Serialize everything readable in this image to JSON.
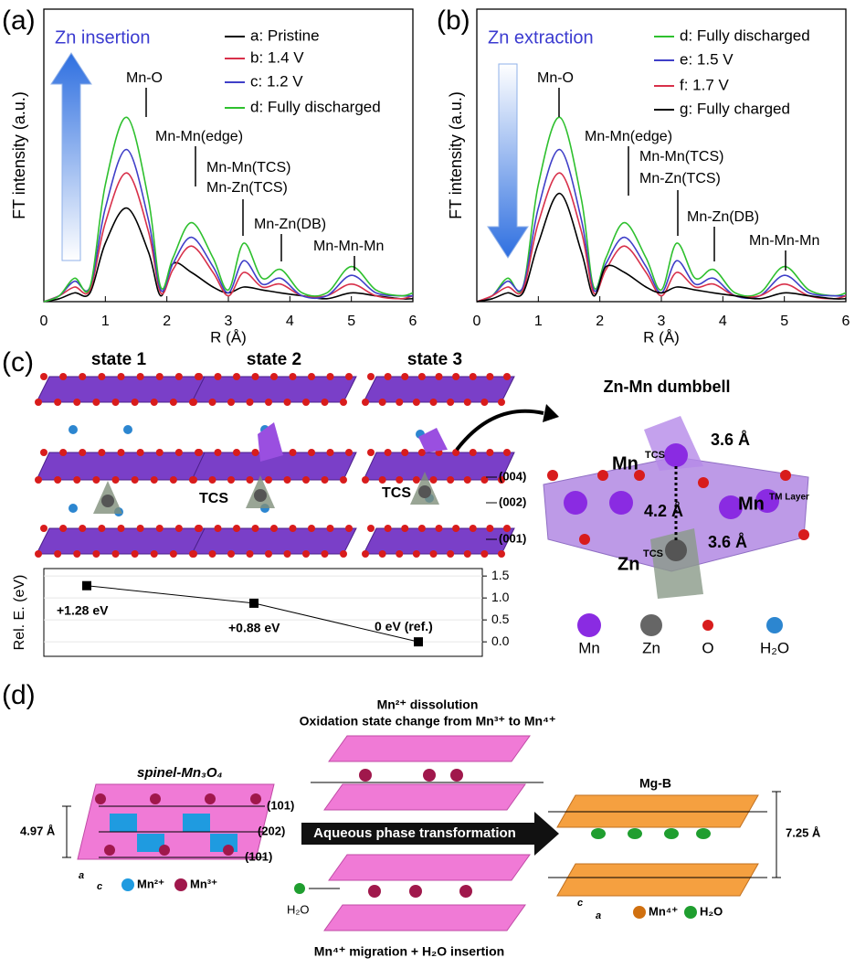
{
  "chart_data": [
    {
      "type": "line",
      "panel": "(a)",
      "title": "Zn insertion",
      "xlabel": "R (Å)",
      "ylabel": "FT intensity (a.u.)",
      "x": [
        0,
        0.25,
        0.5,
        0.75,
        1.0,
        1.35,
        1.7,
        1.9,
        2.1,
        2.4,
        2.75,
        3.0,
        3.25,
        3.55,
        3.85,
        4.2,
        4.6,
        5.0,
        5.4,
        5.8,
        6.0
      ],
      "xlim": [
        0,
        6
      ],
      "xticks": [
        0,
        1,
        2,
        3,
        4,
        5,
        6
      ],
      "ylim": [
        0,
        1
      ],
      "series": [
        {
          "name": "a: Pristine",
          "color": "#000000",
          "values": [
            0,
            0.01,
            0.03,
            0.03,
            0.2,
            0.32,
            0.17,
            0.02,
            0.13,
            0.1,
            0.05,
            0.03,
            0.05,
            0.04,
            0.03,
            0.02,
            0.01,
            0.03,
            0.02,
            0.01,
            0.01
          ]
        },
        {
          "name": "b: 1.4 V",
          "color": "#d8304a",
          "values": [
            0,
            0.02,
            0.05,
            0.04,
            0.27,
            0.44,
            0.24,
            0.03,
            0.11,
            0.19,
            0.1,
            0.02,
            0.1,
            0.05,
            0.06,
            0.02,
            0.02,
            0.06,
            0.02,
            0.01,
            0.02
          ]
        },
        {
          "name": "c: 1.2 V",
          "color": "#3f3fc8",
          "values": [
            0,
            0.02,
            0.07,
            0.05,
            0.32,
            0.52,
            0.28,
            0.04,
            0.13,
            0.22,
            0.12,
            0.03,
            0.14,
            0.06,
            0.08,
            0.02,
            0.02,
            0.09,
            0.03,
            0.02,
            0.02
          ]
        },
        {
          "name": "d: Fully discharged",
          "color": "#2ec02e",
          "values": [
            0,
            0.02,
            0.08,
            0.05,
            0.4,
            0.63,
            0.35,
            0.05,
            0.15,
            0.27,
            0.15,
            0.04,
            0.2,
            0.08,
            0.11,
            0.03,
            0.03,
            0.12,
            0.04,
            0.02,
            0.03
          ]
        }
      ],
      "annotations": [
        "Mn-O",
        "Mn-Mn(edge)",
        "Mn-Mn(TCS)",
        "Mn-Zn(TCS)",
        "Mn-Zn(DB)",
        "Mn-Mn-Mn"
      ]
    },
    {
      "type": "line",
      "panel": "(b)",
      "title": "Zn extraction",
      "xlabel": "R (Å)",
      "ylabel": "FT intensity (a.u.)",
      "x": [
        0,
        0.25,
        0.5,
        0.75,
        1.0,
        1.35,
        1.7,
        1.9,
        2.1,
        2.4,
        2.75,
        3.0,
        3.25,
        3.55,
        3.85,
        4.2,
        4.6,
        5.0,
        5.4,
        5.8,
        6.0
      ],
      "xlim": [
        0,
        6
      ],
      "xticks": [
        0,
        1,
        2,
        3,
        4,
        5,
        6
      ],
      "ylim": [
        0,
        1
      ],
      "series": [
        {
          "name": "d: Fully discharged",
          "color": "#2ec02e",
          "values": [
            0,
            0.02,
            0.08,
            0.05,
            0.4,
            0.63,
            0.35,
            0.05,
            0.15,
            0.27,
            0.15,
            0.04,
            0.2,
            0.08,
            0.11,
            0.03,
            0.03,
            0.12,
            0.04,
            0.02,
            0.03
          ]
        },
        {
          "name": "e: 1.5 V",
          "color": "#3f3fc8",
          "values": [
            0,
            0.02,
            0.07,
            0.05,
            0.32,
            0.52,
            0.28,
            0.04,
            0.13,
            0.22,
            0.12,
            0.03,
            0.14,
            0.06,
            0.08,
            0.02,
            0.02,
            0.09,
            0.03,
            0.02,
            0.02
          ]
        },
        {
          "name": "f:  1.7 V",
          "color": "#d8304a",
          "values": [
            0,
            0.02,
            0.05,
            0.04,
            0.27,
            0.44,
            0.24,
            0.03,
            0.11,
            0.19,
            0.1,
            0.02,
            0.1,
            0.05,
            0.06,
            0.02,
            0.02,
            0.06,
            0.02,
            0.01,
            0.02
          ]
        },
        {
          "name": "g: Fully charged",
          "color": "#000000",
          "values": [
            0,
            0.01,
            0.03,
            0.03,
            0.2,
            0.37,
            0.17,
            0.02,
            0.12,
            0.1,
            0.05,
            0.03,
            0.05,
            0.04,
            0.03,
            0.02,
            0.01,
            0.03,
            0.02,
            0.01,
            0.01
          ]
        }
      ],
      "annotations": [
        "Mn-O",
        "Mn-Mn(edge)",
        "Mn-Mn(TCS)",
        "Mn-Zn(TCS)",
        "Mn-Zn(DB)",
        "Mn-Mn-Mn"
      ]
    },
    {
      "type": "energy",
      "ylabel": "Rel. E. (eV)",
      "values": [
        1.28,
        0.88,
        0
      ],
      "value_labels": [
        "+1.28 eV",
        "+0.88 eV",
        "0 eV (ref.)"
      ],
      "ylim": [
        -0.33,
        1.67
      ],
      "yticks": [
        {
          "value": 0,
          "label": "0.0"
        },
        {
          "value": 0.5,
          "label": "0.5"
        },
        {
          "value": 1,
          "label": "1.0"
        },
        1.5
      ]
    }
  ],
  "panel_c": {
    "label": "(c)",
    "states": [
      "state 1",
      "state 2",
      "state 3"
    ],
    "tcs": [
      "TCS",
      "TCS"
    ],
    "planes": [
      "(004)",
      "(002)",
      "(001)"
    ],
    "dumbbell": {
      "title": "Zn-Mn dumbbell",
      "mn_tcs": "Mn",
      "mn_tcs_sup": "TCS",
      "d1": "3.6 Å",
      "d2": "4.2 Å",
      "mn_tm": "Mn",
      "mn_tm_sup": "TM Layer",
      "zn_tcs": "Zn",
      "zn_tcs_sup": "TCS",
      "d3": "3.6 Å"
    },
    "legend": [
      "Mn",
      "Zn",
      "O",
      "H₂O"
    ]
  },
  "panel_d": {
    "label": "(d)",
    "top_title": "Mn²⁺ dissolution",
    "top_subtitle": "Oxidation state change from Mn³⁺ to Mn⁴⁺",
    "spinel": "spinel-Mn₃O₄",
    "planes": [
      "(101)",
      "(202)",
      "(101)"
    ],
    "spacing_left": "4.97 Å",
    "arrow": "Aqueous phase transformation",
    "product": "Mg-B",
    "spacing_right": "7.25 Å",
    "legend_left": [
      "Mn²⁺",
      "Mn³⁺"
    ],
    "water": "H₂O",
    "bottom_title": "Mn⁴⁺ migration + H₂O insertion",
    "legend_right": [
      "Mn⁴⁺",
      "H₂O"
    ],
    "axes_left": [
      "a",
      "c"
    ],
    "axes_right": [
      "c",
      "a"
    ]
  }
}
